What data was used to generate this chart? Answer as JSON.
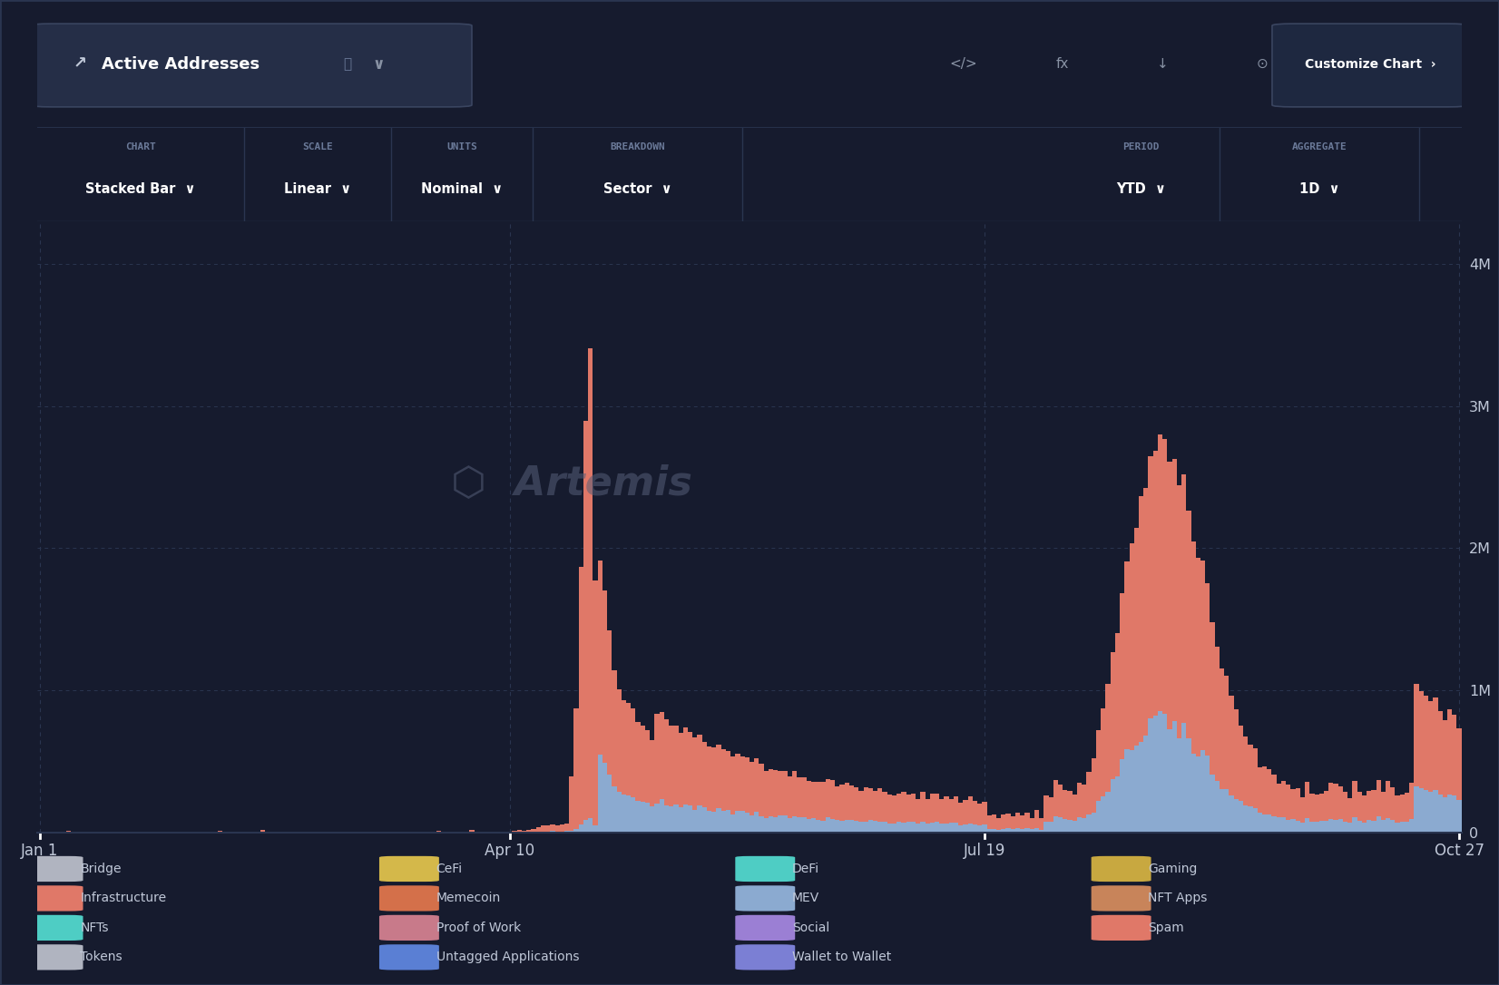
{
  "bg_color": "#161b2e",
  "header_bg": "#1c2237",
  "toolbar_bg": "#161b2e",
  "chart_bg": "#161b2e",
  "grid_color": "#2a3550",
  "text_color": "#6b7a99",
  "label_color": "#c0c8d8",
  "title_btn_bg": "#252e47",
  "title_btn_border": "#3a4560",
  "customize_btn_bg": "#1e2840",
  "customize_btn_border": "#3a4560",
  "ytick_labels": [
    "0",
    "1M",
    "2M",
    "3M",
    "4M"
  ],
  "ytick_values": [
    0,
    1000000,
    2000000,
    3000000,
    4000000
  ],
  "ylim": [
    0,
    4300000
  ],
  "xtick_labels": [
    "Jan 1",
    "Apr 10",
    "Jul 19",
    "Oct 27"
  ],
  "spam_color": "#e07868",
  "wallet_color": "#8baad0",
  "separator_color": "#2a3550",
  "legend_layout": [
    [
      "Bridge",
      "#b0b4c0",
      "CeFi",
      "#d4b84a",
      "DeFi",
      "#4ecdc4",
      "Gaming",
      "#c8a840"
    ],
    [
      "Infrastructure",
      "#e07868",
      "Memecoin",
      "#d4704a",
      "MEV",
      "#8baad0",
      "NFT Apps",
      "#c8845a"
    ],
    [
      "NFTs",
      "#4ecdc4",
      "Proof of Work",
      "#c87a8a",
      "Social",
      "#9b7fd4",
      "Spam",
      "#e07868"
    ],
    [
      "Tokens",
      "#b0b4c0",
      "Untagged Applications",
      "#5a7fd4",
      "Wallet to Wallet",
      "#7b7fd4",
      "",
      ""
    ]
  ]
}
